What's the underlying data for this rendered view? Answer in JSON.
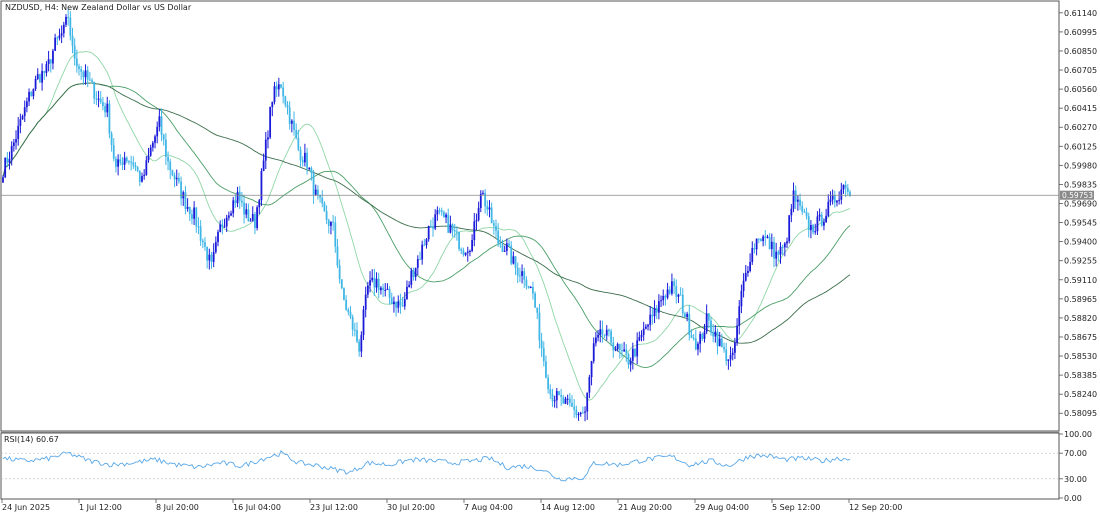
{
  "window": {
    "symbol": "NZDUSD",
    "timeframe": "H4",
    "description": "New Zealand Dollar vs US Dollar",
    "title": "NZDUSD, H4:  New Zealand Dollar vs US Dollar"
  },
  "colors": {
    "bull_candle": "#1a1ad9",
    "bear_candle": "#3fb6e6",
    "ma_fast": "#8fd6a6",
    "ma_mid": "#4a9e66",
    "ma_slow": "#3c6e4c",
    "current_price_line": "#888888",
    "price_badge_bg": "#8a8a8a",
    "rsi_line": "#5aa8e8"
  },
  "price_axis": {
    "labels": [
      "0.61140",
      "0.60995",
      "0.60850",
      "0.60705",
      "0.60560",
      "0.60415",
      "0.60270",
      "0.60125",
      "0.59980",
      "0.59835",
      "0.59690",
      "0.59545",
      "0.59400",
      "0.59255",
      "0.59110",
      "0.58965",
      "0.58820",
      "0.58675",
      "0.58530",
      "0.58385",
      "0.58240",
      "0.58095"
    ],
    "min": 0.5796,
    "max": 0.6123
  },
  "current_price": {
    "value": 0.59753,
    "label": "0.59753"
  },
  "rsi_panel": {
    "label": "RSI(14) 60.67",
    "period": 14,
    "value": 60.67,
    "axis_labels": [
      "100.00",
      "70.00",
      "30.00",
      "0.00"
    ],
    "levels": [
      70,
      30
    ]
  },
  "time_axis": {
    "labels": [
      "24 Jun 2025",
      "1 Jul 12:00",
      "8 Jul 20:00",
      "16 Jul 04:00",
      "23 Jul 12:00",
      "30 Jul 20:00",
      "7 Aug 04:00",
      "14 Aug 12:00",
      "21 Aug 20:00",
      "29 Aug 04:00",
      "5 Sep 12:00",
      "12 Sep 20:00"
    ]
  },
  "chart_data": {
    "type": "candlestick",
    "symbol": "NZDUSD",
    "timeframe": "H4",
    "y_range": [
      0.5796,
      0.6123
    ],
    "anchor_closes": [
      [
        0,
        0.5995
      ],
      [
        4,
        0.601
      ],
      [
        8,
        0.603
      ],
      [
        12,
        0.605
      ],
      [
        16,
        0.6065
      ],
      [
        20,
        0.607
      ],
      [
        24,
        0.609
      ],
      [
        28,
        0.61
      ],
      [
        30,
        0.6112
      ],
      [
        32,
        0.6085
      ],
      [
        36,
        0.607
      ],
      [
        40,
        0.606
      ],
      [
        44,
        0.6048
      ],
      [
        48,
        0.604
      ],
      [
        50,
        0.6015
      ],
      [
        52,
        0.5995
      ],
      [
        56,
        0.6005
      ],
      [
        60,
        0.6
      ],
      [
        64,
        0.5985
      ],
      [
        68,
        0.601
      ],
      [
        72,
        0.603
      ],
      [
        76,
        0.6
      ],
      [
        80,
        0.5985
      ],
      [
        84,
        0.597
      ],
      [
        88,
        0.596
      ],
      [
        92,
        0.594
      ],
      [
        96,
        0.592
      ],
      [
        100,
        0.595
      ],
      [
        104,
        0.5965
      ],
      [
        108,
        0.5975
      ],
      [
        112,
        0.596
      ],
      [
        116,
        0.5955
      ],
      [
        120,
        0.6
      ],
      [
        124,
        0.605
      ],
      [
        128,
        0.606
      ],
      [
        132,
        0.6035
      ],
      [
        136,
        0.601
      ],
      [
        140,
        0.6
      ],
      [
        144,
        0.5975
      ],
      [
        148,
        0.596
      ],
      [
        152,
        0.595
      ],
      [
        156,
        0.59
      ],
      [
        160,
        0.588
      ],
      [
        164,
        0.586
      ],
      [
        168,
        0.5905
      ],
      [
        172,
        0.591
      ],
      [
        176,
        0.59
      ],
      [
        180,
        0.5895
      ],
      [
        184,
        0.589
      ],
      [
        188,
        0.5915
      ],
      [
        192,
        0.593
      ],
      [
        196,
        0.595
      ],
      [
        200,
        0.596
      ],
      [
        204,
        0.5955
      ],
      [
        208,
        0.5945
      ],
      [
        212,
        0.5935
      ],
      [
        216,
        0.594
      ],
      [
        220,
        0.598
      ],
      [
        224,
        0.596
      ],
      [
        228,
        0.594
      ],
      [
        232,
        0.5935
      ],
      [
        236,
        0.592
      ],
      [
        240,
        0.5915
      ],
      [
        244,
        0.59
      ],
      [
        248,
        0.586
      ],
      [
        252,
        0.5825
      ],
      [
        256,
        0.582
      ],
      [
        260,
        0.5815
      ],
      [
        264,
        0.581
      ],
      [
        268,
        0.581
      ],
      [
        272,
        0.586
      ],
      [
        276,
        0.587
      ],
      [
        280,
        0.5865
      ],
      [
        284,
        0.5855
      ],
      [
        288,
        0.585
      ],
      [
        292,
        0.586
      ],
      [
        296,
        0.5875
      ],
      [
        300,
        0.5885
      ],
      [
        304,
        0.59
      ],
      [
        308,
        0.5905
      ],
      [
        312,
        0.5895
      ],
      [
        316,
        0.5875
      ],
      [
        320,
        0.586
      ],
      [
        324,
        0.588
      ],
      [
        328,
        0.587
      ],
      [
        332,
        0.5855
      ],
      [
        336,
        0.585
      ],
      [
        340,
        0.59
      ],
      [
        344,
        0.593
      ],
      [
        348,
        0.5945
      ],
      [
        352,
        0.594
      ],
      [
        356,
        0.593
      ],
      [
        360,
        0.5935
      ],
      [
        364,
        0.5975
      ],
      [
        368,
        0.596
      ],
      [
        372,
        0.595
      ],
      [
        376,
        0.5955
      ],
      [
        380,
        0.5965
      ],
      [
        384,
        0.5975
      ],
      [
        388,
        0.5985
      ],
      [
        390,
        0.5975
      ]
    ],
    "rsi_anchors": [
      [
        0,
        62
      ],
      [
        10,
        58
      ],
      [
        20,
        61
      ],
      [
        30,
        70
      ],
      [
        40,
        58
      ],
      [
        50,
        52
      ],
      [
        60,
        55
      ],
      [
        70,
        60
      ],
      [
        80,
        52
      ],
      [
        90,
        48
      ],
      [
        100,
        55
      ],
      [
        110,
        50
      ],
      [
        120,
        62
      ],
      [
        128,
        70
      ],
      [
        136,
        55
      ],
      [
        146,
        50
      ],
      [
        152,
        45
      ],
      [
        160,
        40
      ],
      [
        168,
        55
      ],
      [
        178,
        52
      ],
      [
        188,
        60
      ],
      [
        198,
        58
      ],
      [
        208,
        55
      ],
      [
        216,
        58
      ],
      [
        224,
        62
      ],
      [
        232,
        48
      ],
      [
        240,
        50
      ],
      [
        248,
        45
      ],
      [
        256,
        30
      ],
      [
        268,
        32
      ],
      [
        272,
        55
      ],
      [
        284,
        52
      ],
      [
        296,
        60
      ],
      [
        308,
        65
      ],
      [
        316,
        52
      ],
      [
        326,
        58
      ],
      [
        334,
        50
      ],
      [
        344,
        66
      ],
      [
        352,
        66
      ],
      [
        360,
        60
      ],
      [
        368,
        62
      ],
      [
        378,
        58
      ],
      [
        384,
        62
      ],
      [
        390,
        60.67
      ]
    ]
  }
}
